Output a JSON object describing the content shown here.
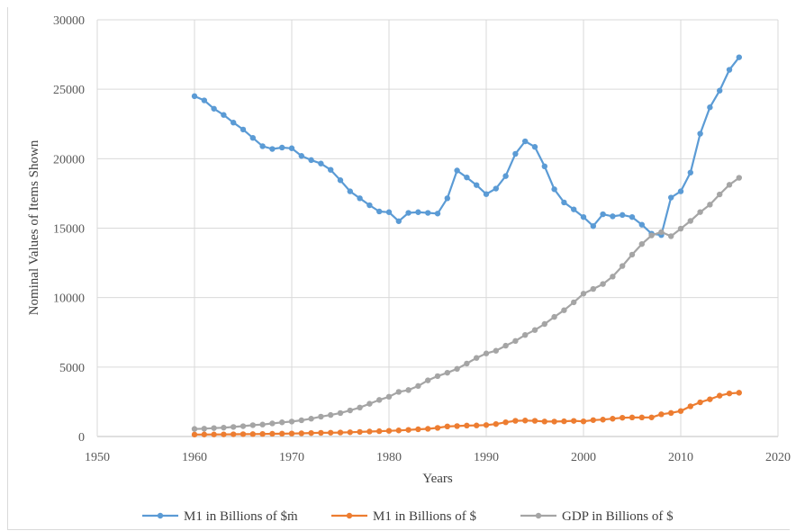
{
  "chart_data": {
    "type": "line",
    "title": "",
    "xlabel": "Years",
    "ylabel": "Nominal Values of Items Shown",
    "xlim": [
      1950,
      2020
    ],
    "ylim": [
      0,
      30000
    ],
    "xticks": [
      1950,
      1960,
      1970,
      1980,
      1990,
      2000,
      2010,
      2020
    ],
    "yticks": [
      0,
      5000,
      10000,
      15000,
      20000,
      25000,
      30000
    ],
    "grid": true,
    "legend_position": "bottom",
    "x": [
      1960,
      1961,
      1962,
      1963,
      1964,
      1965,
      1966,
      1967,
      1968,
      1969,
      1970,
      1971,
      1972,
      1973,
      1974,
      1975,
      1976,
      1977,
      1978,
      1979,
      1980,
      1981,
      1982,
      1983,
      1984,
      1985,
      1986,
      1987,
      1988,
      1989,
      1990,
      1991,
      1992,
      1993,
      1994,
      1995,
      1996,
      1997,
      1998,
      1999,
      2000,
      2001,
      2002,
      2003,
      2004,
      2005,
      2006,
      2007,
      2008,
      2009,
      2010,
      2011,
      2012,
      2013,
      2014,
      2015,
      2016
    ],
    "series": [
      {
        "name": "M1 in Billions of $ṁ",
        "color": "#5b9bd5",
        "values": [
          24500,
          24200,
          23600,
          23150,
          22600,
          22100,
          21500,
          20900,
          20700,
          20800,
          20750,
          20200,
          19900,
          19650,
          19200,
          18450,
          17650,
          17150,
          16650,
          16200,
          16150,
          15500,
          16100,
          16150,
          16100,
          16050,
          17150,
          19150,
          18650,
          18100,
          17450,
          17850,
          18750,
          20350,
          21250,
          20850,
          19450,
          17800,
          16850,
          16350,
          15800,
          15150,
          16000,
          15850,
          15950,
          15800,
          15250,
          14600,
          14500,
          17200,
          17650,
          19000,
          21800,
          23700,
          24900,
          26400,
          27300
        ]
      },
      {
        "name": "M1 in Billions of $",
        "color": "#ed7d31",
        "values": [
          140,
          145,
          148,
          152,
          160,
          167,
          172,
          183,
          197,
          204,
          214,
          229,
          250,
          263,
          274,
          287,
          306,
          331,
          358,
          383,
          409,
          437,
          475,
          521,
          552,
          620,
          725,
          750,
          787,
          795,
          825,
          897,
          1025,
          1130,
          1150,
          1130,
          1080,
          1075,
          1095,
          1125,
          1090,
          1180,
          1215,
          1280,
          1350,
          1370,
          1370,
          1375,
          1600,
          1695,
          1835,
          2175,
          2460,
          2680,
          2940,
          3100,
          3150
        ]
      },
      {
        "name": "GDP in Billions of $",
        "color": "#a5a5a5",
        "values": [
          543,
          563,
          605,
          638,
          686,
          743,
          815,
          861,
          942,
          1020,
          1075,
          1168,
          1282,
          1429,
          1549,
          1689,
          1878,
          2086,
          2357,
          2632,
          2863,
          3211,
          3345,
          3638,
          4041,
          4347,
          4590,
          4870,
          5253,
          5658,
          5980,
          6174,
          6539,
          6879,
          7309,
          7664,
          8100,
          8609,
          9089,
          9661,
          10285,
          10622,
          10978,
          11511,
          12275,
          13094,
          13856,
          14478,
          14719,
          14419,
          14964,
          15518,
          16155,
          16692,
          17428,
          18121,
          18625
        ]
      }
    ]
  }
}
